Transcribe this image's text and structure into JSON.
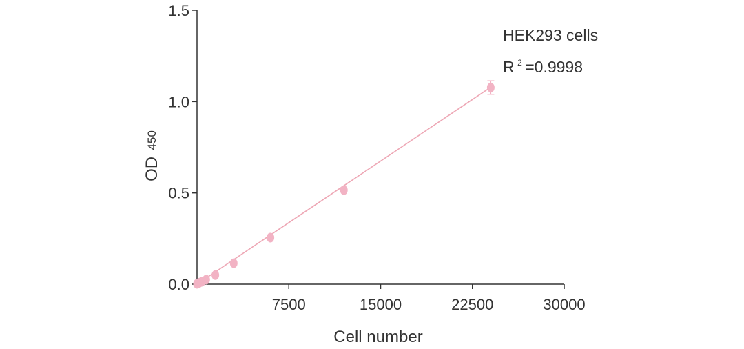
{
  "chart_data": {
    "type": "scatter",
    "title": "",
    "xlabel": "Cell number",
    "ylabel": "OD",
    "ylabel_subscript": "450",
    "xlim": [
      0,
      30000
    ],
    "ylim": [
      0,
      1.5
    ],
    "x_ticks": [
      7500,
      15000,
      22500,
      30000
    ],
    "x_tick_labels": [
      "7500",
      "15000",
      "22500",
      "30000"
    ],
    "y_ticks": [
      0,
      0.5,
      1.0,
      1.5
    ],
    "y_tick_labels": [
      "0.0",
      "0.5",
      "1.0",
      "1.5"
    ],
    "grid": false,
    "series": [
      {
        "color": "#f2b3c4",
        "x": [
          0,
          94,
          188,
          375,
          750,
          1500,
          3000,
          6000,
          12000,
          24000
        ],
        "y": [
          0.002,
          0.004,
          0.008,
          0.013,
          0.025,
          0.05,
          0.115,
          0.255,
          0.515,
          1.077
        ],
        "error": [
          0.008,
          0.008,
          0.008,
          0.008,
          0.008,
          0.01,
          0.012,
          0.015,
          0.015,
          0.037
        ]
      }
    ],
    "fit_line": {
      "color": "#eea7b5",
      "x": [
        0,
        24000
      ],
      "y": [
        -0.005,
        1.079
      ]
    },
    "annotations": {
      "cell_line": "HEK293 cells",
      "r2_prefix": "R",
      "r2_sup": "2",
      "r2_value": "=0.9998"
    }
  }
}
